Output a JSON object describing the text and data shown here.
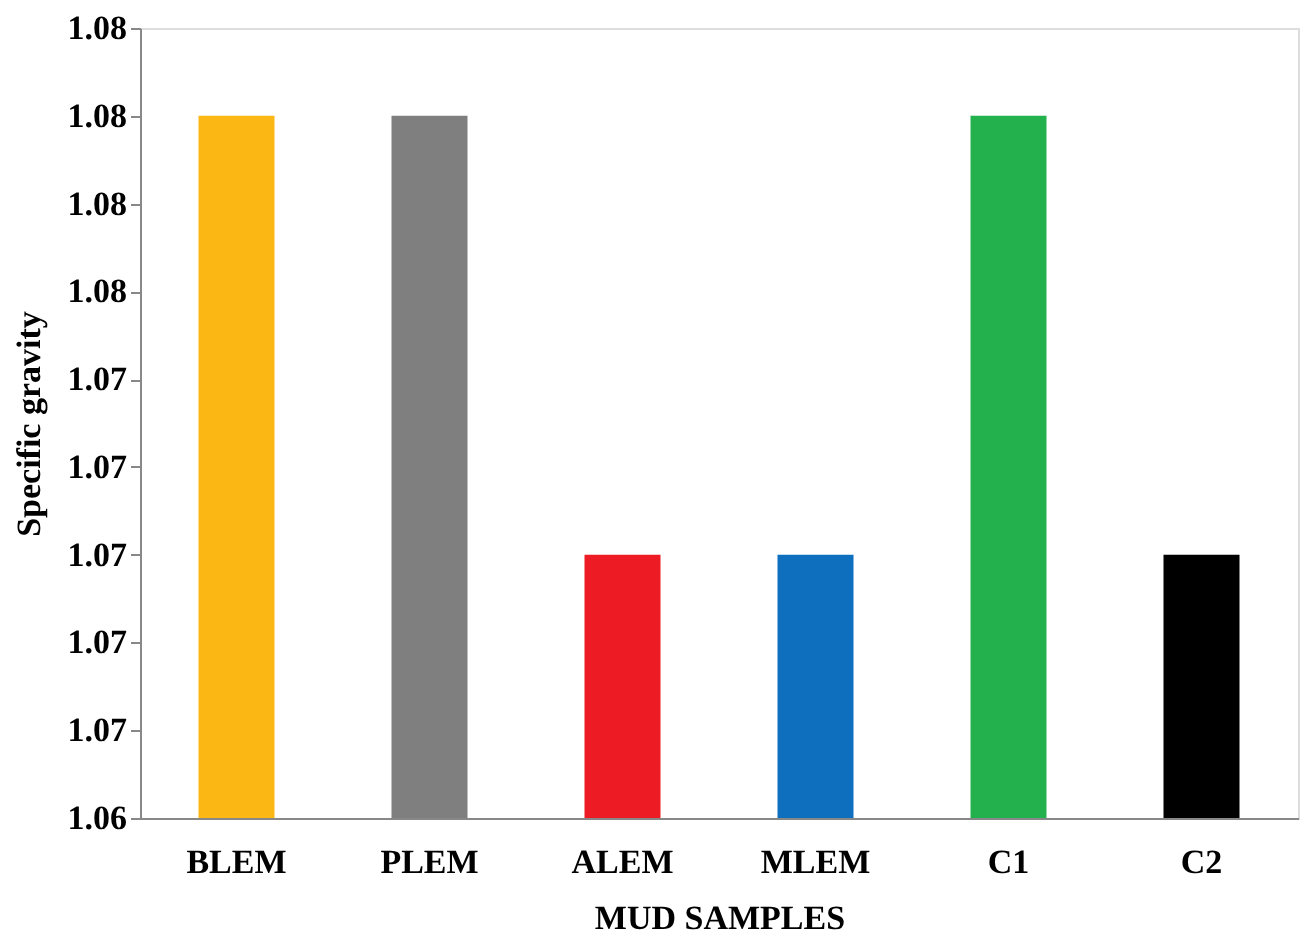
{
  "chart_data": {
    "type": "bar",
    "xlabel": "MUD SAMPLES",
    "ylabel": "Specific gravity",
    "categories": [
      "BLEM",
      "PLEM",
      "ALEM",
      "MLEM",
      "C1",
      "C2"
    ],
    "values": [
      1.08,
      1.08,
      1.07,
      1.07,
      1.08,
      1.07
    ],
    "colors": [
      "#fbb714",
      "#7f7f7f",
      "#ed1c24",
      "#0f6fbf",
      "#22b14c",
      "#000000"
    ],
    "ylim": [
      1.064,
      1.082
    ],
    "yticks": [
      {
        "value": 1.064,
        "label": "1.06"
      },
      {
        "value": 1.066,
        "label": "1.07"
      },
      {
        "value": 1.068,
        "label": "1.07"
      },
      {
        "value": 1.07,
        "label": "1.07"
      },
      {
        "value": 1.072,
        "label": "1.07"
      },
      {
        "value": 1.074,
        "label": "1.07"
      },
      {
        "value": 1.076,
        "label": "1.08"
      },
      {
        "value": 1.078,
        "label": "1.08"
      },
      {
        "value": 1.08,
        "label": "1.08"
      },
      {
        "value": 1.082,
        "label": "1.08"
      }
    ],
    "grid": false
  }
}
